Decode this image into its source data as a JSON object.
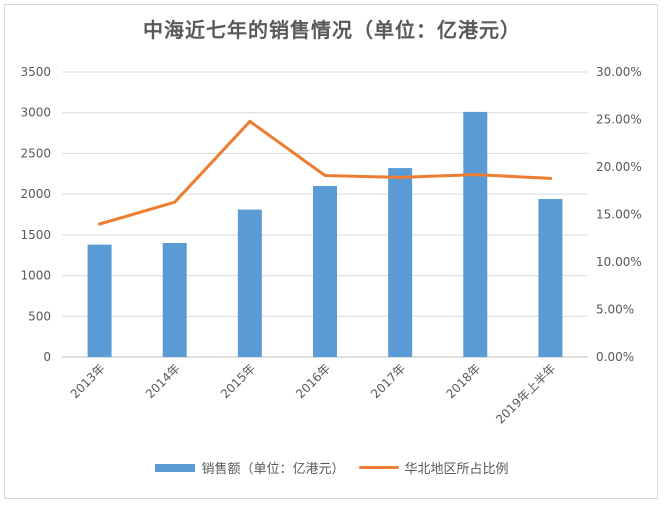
{
  "title": "中海近七年的销售情况（单位：亿港元）",
  "chart_data": {
    "type": "bar",
    "categories": [
      "2013年",
      "2014年",
      "2015年",
      "2016年",
      "2017年",
      "2018年",
      "2019年上半年"
    ],
    "series": [
      {
        "name": "销售额（单位：亿港元）",
        "kind": "bar",
        "axis": "left",
        "color": "#5b9bd5",
        "values": [
          1380,
          1400,
          1810,
          2100,
          2320,
          3010,
          1940
        ]
      },
      {
        "name": "华北地区所占比例",
        "kind": "line",
        "axis": "right",
        "color": "#ed7d31",
        "values": [
          0.14,
          0.163,
          0.248,
          0.191,
          0.189,
          0.192,
          0.188
        ]
      }
    ],
    "y_left": {
      "ticks": [
        "0",
        "500",
        "1000",
        "1500",
        "2000",
        "2500",
        "3000",
        "3500"
      ],
      "ylim": [
        0,
        3500
      ]
    },
    "y_right": {
      "ticks": [
        "0.00%",
        "5.00%",
        "10.00%",
        "15.00%",
        "20.00%",
        "25.00%",
        "30.00%"
      ],
      "ylim": [
        0,
        0.3
      ]
    },
    "grid": true,
    "legend_position": "bottom"
  }
}
